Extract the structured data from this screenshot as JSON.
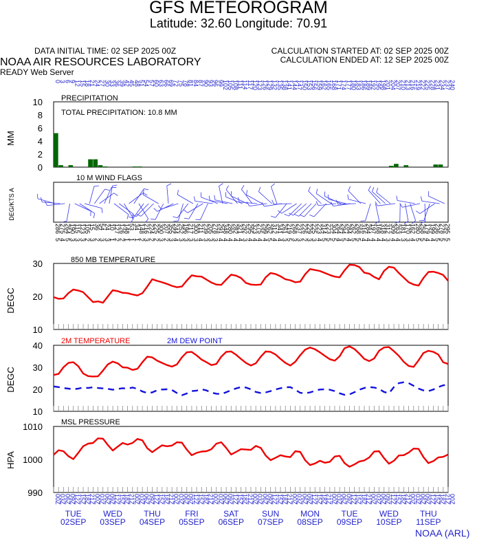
{
  "header": {
    "title": "GFS METEOROGRAM",
    "coords": "Latitude: 32.60 Longitude:  70.91",
    "init_time": "DATA INITIAL TIME: 02 SEP 2025 00Z",
    "calc_started": "CALCULATION STARTED AT: 02 SEP 2025 00Z",
    "calc_ended": "CALCULATION ENDED AT: 12 SEP 2025 00Z",
    "lab": "NOAA AIR RESOURCES LABORATORY",
    "server": "READY Web Server"
  },
  "footer": {
    "credit": "NOAA (ARL)"
  },
  "colors": {
    "precip": "#006600",
    "temp": "#ee0000",
    "dew": "#1111dd",
    "wind": "#3333ee",
    "label_blue": "#2222cc"
  },
  "chart_data": [
    {
      "type": "bar",
      "title": "PRECIPITATION",
      "annotation": "TOTAL PRECIPITATION:  10.8 MM",
      "ylabel": "MM",
      "ylim": [
        0,
        10
      ],
      "yticks": [
        0,
        2,
        4,
        6,
        8,
        10
      ],
      "x_hours": [
        0,
        3,
        6,
        9,
        12,
        15,
        18,
        21,
        24,
        27,
        30,
        33,
        36,
        39,
        42,
        45,
        48,
        51,
        204,
        207,
        210,
        213,
        216,
        219,
        222,
        225,
        228,
        231,
        234,
        237
      ],
      "values": [
        5.2,
        0.3,
        0.0,
        0.3,
        0.0,
        0.0,
        0.0,
        1.2,
        1.2,
        0.3,
        0.1,
        0.0,
        0.0,
        0.0,
        0.0,
        0.0,
        0.1,
        0.1,
        0.2,
        0.5,
        0.0,
        0.3,
        0.0,
        0.0,
        0.0,
        0.0,
        0.0,
        0.4,
        0.4,
        0.0
      ]
    },
    {
      "type": "wind_barbs",
      "title": "10 M  WIND FLAGS",
      "ylabel": "DEG/KTS  A",
      "direction_labels": [
        "286",
        "275",
        "264",
        "190",
        "115",
        "123",
        "105",
        "15",
        "36",
        "54",
        "24",
        "10",
        "127",
        "126",
        "148",
        "53",
        "34",
        "148",
        "216",
        "224",
        "225",
        "300",
        "207",
        "355",
        "244",
        "252",
        "196",
        "217",
        "300",
        "211",
        "239",
        "205",
        "278",
        "291",
        "348",
        "280",
        "282",
        "321",
        "292",
        "295",
        "323",
        "275",
        "299",
        "262",
        "312",
        "341",
        "261",
        "219",
        "268",
        "237",
        "226",
        "229",
        "225",
        "223",
        "314",
        "223",
        "304",
        "264",
        "294",
        "284",
        "262",
        "268",
        "316",
        "284",
        "197",
        "168",
        "318",
        "312",
        "309",
        "263",
        "181",
        "170",
        "162",
        "280",
        "258",
        "179",
        "199",
        "236",
        "278",
        "295"
      ],
      "speed_labels": [
        "5",
        "4",
        "5",
        "3",
        "3",
        "3",
        "2",
        "3",
        "2",
        "3",
        "3",
        "1",
        "2",
        "2",
        "1",
        "1",
        "1",
        "2",
        "3",
        "2",
        "2",
        "3",
        "2",
        "3",
        "4",
        "3",
        "3",
        "3",
        "3",
        "4",
        "3",
        "3",
        "3",
        "4",
        "4",
        "4",
        "4",
        "4",
        "3",
        "4",
        "4",
        "4",
        "4",
        "5",
        "4",
        "4",
        "3",
        "5",
        "3",
        "3",
        "2",
        "3",
        "3",
        "4",
        "5",
        "5",
        "5",
        "4",
        "5",
        "4",
        "5",
        "5",
        "4",
        "4",
        "4",
        "4",
        "4",
        "3",
        "4",
        "4",
        "3",
        "3",
        "4",
        "5",
        "5",
        "4",
        "4",
        "5",
        "5",
        "5"
      ]
    },
    {
      "type": "line",
      "title": "850 MB  TEMPERATURE",
      "ylabel": "DEGC",
      "ylim": [
        10,
        30
      ],
      "yticks": [
        10,
        20,
        30
      ],
      "x_hours": [
        0,
        3,
        6,
        9,
        12,
        15,
        18,
        21,
        24,
        27,
        30,
        33,
        36,
        39,
        42,
        45,
        48,
        51,
        54,
        57,
        60,
        63,
        66,
        69,
        72,
        75,
        78,
        81,
        84,
        87,
        90,
        93,
        96,
        99,
        102,
        105,
        108,
        111,
        114,
        117,
        120,
        123,
        126,
        129,
        132,
        135,
        138,
        141,
        144,
        147,
        150,
        153,
        156,
        159,
        162,
        165,
        168,
        171,
        174,
        177,
        180,
        183,
        186,
        189,
        192,
        195,
        198,
        201,
        204,
        207,
        210,
        213,
        216,
        219,
        222,
        225,
        228,
        231,
        234,
        237,
        240
      ],
      "series": [
        {
          "values": [
            19.8,
            19.3,
            19.4,
            21.0,
            22.1,
            21.8,
            21.3,
            19.8,
            18.3,
            18.5,
            18.1,
            20.0,
            21.9,
            21.6,
            21.1,
            21.0,
            20.6,
            20.3,
            21.0,
            23.0,
            25.2,
            24.7,
            24.3,
            23.8,
            23.2,
            22.8,
            23.0,
            24.8,
            26.4,
            26.1,
            26.0,
            25.1,
            24.2,
            23.6,
            23.5,
            25.1,
            26.6,
            26.3,
            25.6,
            24.1,
            23.6,
            23.5,
            23.6,
            25.8,
            27.1,
            26.8,
            26.1,
            25.2,
            24.9,
            24.3,
            24.5,
            26.7,
            28.3,
            28.0,
            27.7,
            27.1,
            26.5,
            26.0,
            25.8,
            27.9,
            29.6,
            29.5,
            28.9,
            27.2,
            26.9,
            25.9,
            25.2,
            27.7,
            29.0,
            28.7,
            27.1,
            25.7,
            24.3,
            23.6,
            23.3,
            25.6,
            27.4,
            27.5,
            27.1,
            26.5,
            24.7
          ]
        }
      ]
    },
    {
      "type": "line",
      "title": "",
      "ylabel": "DEGC",
      "ylim": [
        10,
        40
      ],
      "yticks": [
        10,
        20,
        30,
        40
      ],
      "x_hours": [
        0,
        3,
        6,
        9,
        12,
        15,
        18,
        21,
        24,
        27,
        30,
        33,
        36,
        39,
        42,
        45,
        48,
        51,
        54,
        57,
        60,
        63,
        66,
        69,
        72,
        75,
        78,
        81,
        84,
        87,
        90,
        93,
        96,
        99,
        102,
        105,
        108,
        111,
        114,
        117,
        120,
        123,
        126,
        129,
        132,
        135,
        138,
        141,
        144,
        147,
        150,
        153,
        156,
        159,
        162,
        165,
        168,
        171,
        174,
        177,
        180,
        183,
        186,
        189,
        192,
        195,
        198,
        201,
        204,
        207,
        210,
        213,
        216,
        219,
        222,
        225,
        228,
        231,
        234,
        237,
        240
      ],
      "series": [
        {
          "name": "2M TEMPERATURE",
          "style": "solid",
          "values": [
            26.5,
            27.0,
            30.0,
            32.0,
            32.3,
            30.5,
            27.2,
            26.0,
            25.8,
            25.9,
            28.5,
            31.3,
            32.6,
            31.8,
            30.0,
            29.8,
            28.8,
            29.3,
            32.3,
            34.8,
            34.5,
            33.0,
            32.0,
            31.0,
            30.3,
            31.3,
            34.5,
            36.8,
            37.0,
            35.4,
            33.5,
            32.3,
            31.0,
            31.5,
            34.8,
            37.0,
            37.2,
            35.7,
            33.8,
            32.0,
            30.8,
            31.8,
            34.8,
            37.2,
            37.0,
            35.8,
            33.8,
            32.0,
            30.8,
            32.5,
            35.5,
            38.0,
            39.0,
            38.2,
            36.8,
            35.2,
            33.7,
            33.0,
            35.0,
            38.7,
            39.5,
            38.3,
            36.2,
            33.8,
            32.8,
            34.0,
            37.5,
            39.0,
            39.2,
            37.3,
            35.2,
            32.5,
            30.6,
            30.2,
            33.2,
            36.5,
            37.5,
            37.0,
            35.8,
            32.3,
            31.5
          ]
        },
        {
          "name": "2M  DEW POINT",
          "style": "dashed",
          "values": [
            21.3,
            21.0,
            20.6,
            20.3,
            20.0,
            20.3,
            20.8,
            20.6,
            20.9,
            20.6,
            20.4,
            20.2,
            19.8,
            20.2,
            20.5,
            20.3,
            20.8,
            20.2,
            19.0,
            18.3,
            18.6,
            19.6,
            19.9,
            20.0,
            19.7,
            18.3,
            17.3,
            18.1,
            19.2,
            19.4,
            20.0,
            19.5,
            18.5,
            18.0,
            17.8,
            18.7,
            19.6,
            20.4,
            21.0,
            20.8,
            20.0,
            18.8,
            18.3,
            18.6,
            19.2,
            19.9,
            20.5,
            20.9,
            21.0,
            19.8,
            18.4,
            18.2,
            18.6,
            19.3,
            19.9,
            20.0,
            19.8,
            19.2,
            18.2,
            17.5,
            17.7,
            18.7,
            19.8,
            20.6,
            21.0,
            20.8,
            20.2,
            18.8,
            18.2,
            21.0,
            22.8,
            23.2,
            22.8,
            21.6,
            20.3,
            19.5,
            19.2,
            19.9,
            21.0,
            21.8,
            22.0
          ]
        }
      ]
    },
    {
      "type": "line",
      "title": "MSL PRESSURE",
      "ylabel": "HPA",
      "ylim": [
        990,
        1010
      ],
      "yticks": [
        990,
        1000,
        1010
      ],
      "x_hours": [
        0,
        3,
        6,
        9,
        12,
        15,
        18,
        21,
        24,
        27,
        30,
        33,
        36,
        39,
        42,
        45,
        48,
        51,
        54,
        57,
        60,
        63,
        66,
        69,
        72,
        75,
        78,
        81,
        84,
        87,
        90,
        93,
        96,
        99,
        102,
        105,
        108,
        111,
        114,
        117,
        120,
        123,
        126,
        129,
        132,
        135,
        138,
        141,
        144,
        147,
        150,
        153,
        156,
        159,
        162,
        165,
        168,
        171,
        174,
        177,
        180,
        183,
        186,
        189,
        192,
        195,
        198,
        201,
        204,
        207,
        210,
        213,
        216,
        219,
        222,
        225,
        228,
        231,
        234,
        237,
        240
      ],
      "series": [
        {
          "values": [
            1001.4,
            1002.8,
            1002.5,
            1001.0,
            1000.1,
            1002.0,
            1004.0,
            1004.8,
            1005.0,
            1006.4,
            1006.3,
            1004.4,
            1002.7,
            1003.9,
            1005.0,
            1004.5,
            1005.0,
            1006.2,
            1005.8,
            1003.4,
            1002.2,
            1003.3,
            1004.3,
            1004.0,
            1004.2,
            1005.2,
            1005.1,
            1003.0,
            1001.3,
            1002.0,
            1002.4,
            1002.5,
            1003.1,
            1004.8,
            1005.2,
            1003.5,
            1001.5,
            1002.3,
            1003.1,
            1003.0,
            1002.9,
            1004.1,
            1003.5,
            1001.2,
            999.8,
            1000.5,
            1001.3,
            1000.9,
            1000.7,
            1002.5,
            1002.3,
            999.8,
            998.3,
            998.8,
            999.6,
            999.0,
            999.3,
            1000.9,
            1001.1,
            998.9,
            997.8,
            998.5,
            999.4,
            999.7,
            1000.6,
            1002.4,
            1002.5,
            1000.4,
            998.7,
            999.6,
            1001.2,
            1001.3,
            1002.1,
            1003.3,
            1003.2,
            1000.7,
            998.9,
            999.5,
            1000.6,
            1000.8,
            1001.5
          ]
        }
      ]
    }
  ],
  "panel_labels": {
    "temp2m_legend": "2M TEMPERATURE",
    "dew_legend": "2M  DEW POINT"
  },
  "x_axis": {
    "days": [
      {
        "dow": "TUE",
        "date": "02SEP"
      },
      {
        "dow": "WED",
        "date": "03SEP"
      },
      {
        "dow": "THU",
        "date": "04SEP"
      },
      {
        "dow": "FRI",
        "date": "05SEP"
      },
      {
        "dow": "SAT",
        "date": "06SEP"
      },
      {
        "dow": "SUN",
        "date": "07SEP"
      },
      {
        "dow": "MON",
        "date": "08SEP"
      },
      {
        "dow": "TUE",
        "date": "09SEP"
      },
      {
        "dow": "WED",
        "date": "10SEP"
      },
      {
        "dow": "THU",
        "date": "11SEP"
      }
    ],
    "hour_labels": [
      "00Z",
      "03Z",
      "06Z",
      "09Z",
      "12Z",
      "15Z",
      "18Z",
      "21Z"
    ],
    "top_hour_labels": [
      "0",
      "3",
      "6",
      "9",
      "12",
      "15",
      "18",
      "21",
      "24",
      "27",
      "30",
      "33",
      "36",
      "39",
      "42",
      "45",
      "48",
      "51",
      "54",
      "57",
      "60",
      "63",
      "66",
      "69",
      "72",
      "75",
      "78",
      "81",
      "84",
      "87",
      "90",
      "93",
      "96",
      "99",
      "102",
      "105",
      "108",
      "111",
      "114",
      "117",
      "120",
      "123",
      "126",
      "129",
      "132",
      "135",
      "138",
      "141",
      "144",
      "147",
      "150",
      "153",
      "156",
      "159",
      "162",
      "165",
      "168",
      "171",
      "174",
      "177",
      "180",
      "183",
      "186",
      "189",
      "192",
      "195",
      "198",
      "201",
      "204",
      "207",
      "210",
      "213",
      "216",
      "219",
      "222",
      "225",
      "228",
      "231",
      "234",
      "237",
      "240"
    ]
  }
}
